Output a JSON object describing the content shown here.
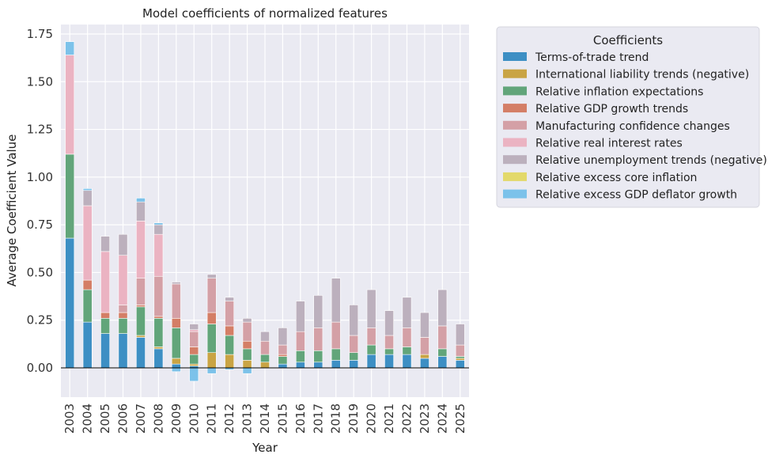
{
  "chart_data": {
    "type": "bar",
    "stacked": true,
    "title": "Model coefficients of normalized features",
    "xlabel": "Year",
    "ylabel": "Average Coefficient Value",
    "ylim": [
      -0.15,
      1.8
    ],
    "yticks": [
      "0.00",
      "0.25",
      "0.50",
      "0.75",
      "1.00",
      "1.25",
      "1.50",
      "1.75"
    ],
    "grid": true,
    "legend_title": "Coefficients",
    "legend_position": "outside-right",
    "categories": [
      "2003",
      "2004",
      "2005",
      "2006",
      "2007",
      "2008",
      "2009",
      "2010",
      "2011",
      "2012",
      "2013",
      "2014",
      "2015",
      "2016",
      "2017",
      "2018",
      "2019",
      "2020",
      "2021",
      "2022",
      "2023",
      "2024",
      "2025"
    ],
    "series": [
      {
        "name": "Terms-of-trade trend",
        "color": "#3d8fc4",
        "values": [
          0.68,
          0.24,
          0.18,
          0.18,
          0.16,
          0.1,
          0.02,
          0.01,
          0.0,
          0.0,
          0.0,
          0.0,
          0.02,
          0.03,
          0.03,
          0.04,
          0.04,
          0.07,
          0.07,
          0.07,
          0.05,
          0.06,
          0.04
        ]
      },
      {
        "name": "International liability trends (negative)",
        "color": "#c9a444",
        "values": [
          0.0,
          0.0,
          0.0,
          0.0,
          0.01,
          0.01,
          0.03,
          0.01,
          0.08,
          0.07,
          0.04,
          0.03,
          0.0,
          0.0,
          0.0,
          0.0,
          0.0,
          0.0,
          0.0,
          0.0,
          0.02,
          0.0,
          0.01
        ]
      },
      {
        "name": "Relative inflation expectations",
        "color": "#62a57a",
        "values": [
          0.44,
          0.17,
          0.08,
          0.08,
          0.15,
          0.15,
          0.16,
          0.05,
          0.15,
          0.1,
          0.06,
          0.04,
          0.04,
          0.06,
          0.06,
          0.06,
          0.04,
          0.05,
          0.03,
          0.04,
          0.0,
          0.04,
          0.01
        ]
      },
      {
        "name": "Relative GDP growth trends",
        "color": "#d47e66",
        "values": [
          0.0,
          0.05,
          0.03,
          0.03,
          0.01,
          0.01,
          0.05,
          0.04,
          0.06,
          0.05,
          0.04,
          0.0,
          0.01,
          0.0,
          0.0,
          0.0,
          0.0,
          0.0,
          0.0,
          0.0,
          0.0,
          0.0,
          0.0
        ]
      },
      {
        "name": "Manufacturing confidence changes",
        "color": "#d4a0a6",
        "values": [
          0.0,
          0.0,
          0.0,
          0.04,
          0.14,
          0.21,
          0.18,
          0.08,
          0.18,
          0.13,
          0.1,
          0.07,
          0.05,
          0.1,
          0.12,
          0.14,
          0.09,
          0.09,
          0.07,
          0.1,
          0.09,
          0.12,
          0.06
        ]
      },
      {
        "name": "Relative real interest rates",
        "color": "#ebb3c2",
        "values": [
          0.52,
          0.39,
          0.32,
          0.26,
          0.3,
          0.22,
          0.0,
          0.01,
          0.0,
          0.0,
          0.0,
          0.0,
          0.0,
          0.0,
          0.0,
          0.0,
          0.0,
          0.0,
          0.0,
          0.0,
          0.0,
          0.0,
          0.0
        ]
      },
      {
        "name": "Relative unemployment trends (negative)",
        "color": "#bcb0bd",
        "values": [
          0.0,
          0.08,
          0.08,
          0.11,
          0.1,
          0.05,
          0.01,
          0.03,
          0.02,
          0.02,
          0.02,
          0.05,
          0.09,
          0.16,
          0.17,
          0.23,
          0.16,
          0.2,
          0.13,
          0.16,
          0.13,
          0.19,
          0.11
        ]
      },
      {
        "name": "Relative excess core inflation",
        "color": "#e3d96a",
        "values": [
          0.0,
          0.0,
          0.0,
          0.0,
          0.0,
          0.0,
          0.0,
          0.0,
          0.0,
          0.0,
          0.0,
          0.0,
          0.0,
          0.0,
          0.0,
          0.0,
          0.0,
          0.0,
          0.0,
          0.0,
          0.0,
          0.0,
          0.0
        ]
      },
      {
        "name": "Relative excess GDP deflator growth",
        "color": "#7cc2ea",
        "values": [
          0.07,
          0.01,
          0.0,
          0.0,
          0.02,
          0.01,
          -0.02,
          -0.07,
          -0.03,
          -0.01,
          -0.03,
          0.0,
          0.0,
          0.0,
          0.0,
          0.0,
          0.0,
          0.0,
          0.0,
          0.0,
          0.0,
          0.0,
          0.0
        ]
      }
    ]
  }
}
